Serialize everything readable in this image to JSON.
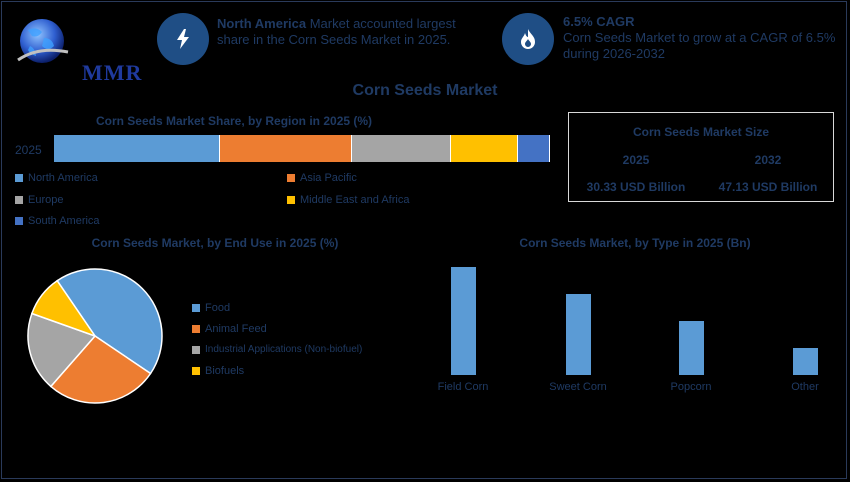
{
  "logo": {
    "text": "MMR"
  },
  "highlights": [
    {
      "bold": "North America",
      "text": " Market accounted largest share in the Corn Seeds Market in 2025.",
      "icon": "bolt-icon"
    },
    {
      "bold": "6.5% CAGR",
      "text": "Corn Seeds Market to grow at a CAGR of 6.5% during 2026-2032",
      "icon": "flame-icon"
    }
  ],
  "title": "Corn Seeds Market",
  "market_size": {
    "title": "Corn Seeds Market Size",
    "year1": "2025",
    "year2": "2032",
    "value1": "30.33 USD Billion",
    "value2": "47.13 USD Billion"
  },
  "colors": {
    "blue": "#5b9bd5",
    "orange": "#ed7d31",
    "gray": "#a5a5a5",
    "yellow": "#ffc000",
    "darkblue": "#4472c4",
    "text": "#1f3a63"
  },
  "chart_data": [
    {
      "type": "bar",
      "orientation": "stacked-horizontal",
      "title": "Corn Seeds Market Share, by Region in 2025 (%)",
      "categories": [
        "2025"
      ],
      "series": [
        {
          "name": "North America",
          "values": [
            33.5
          ]
        },
        {
          "name": "Asia Pacific",
          "values": [
            26.5
          ]
        },
        {
          "name": "Europe",
          "values": [
            20
          ]
        },
        {
          "name": "Middle East and Africa",
          "values": [
            13.5
          ]
        },
        {
          "name": "South America",
          "values": [
            6.5
          ]
        }
      ],
      "legend_position": "bottom"
    },
    {
      "type": "pie",
      "title": "Corn Seeds Market, by End Use in 2025 (%)",
      "labels": [
        "Food",
        "Animal Feed",
        "Industrial Applications (Non-biofuel)",
        "Biofuels"
      ],
      "values": [
        44,
        27,
        19,
        10
      ],
      "legend_position": "right"
    },
    {
      "type": "bar",
      "title": "Corn Seeds Market, by Type in 2025 (Bn)",
      "categories": [
        "Field Corn",
        "Sweet Corn",
        "Popcorn",
        "Other"
      ],
      "values": [
        10,
        7.5,
        5,
        2.5
      ],
      "ylim": [
        0,
        10
      ]
    }
  ]
}
